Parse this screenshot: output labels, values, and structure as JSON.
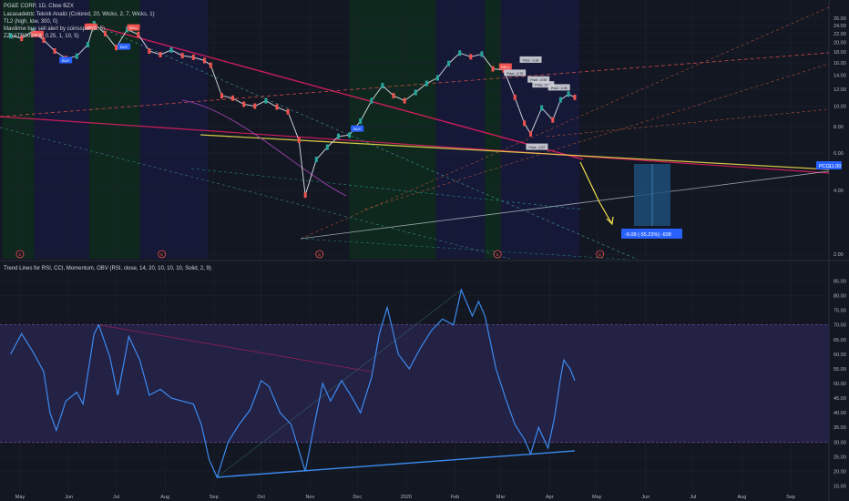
{
  "header": {
    "symbol_line": "PG&E CORP, 1D, Cboe BZX",
    "indicators": [
      "Lacasadebtc Teknik Analiz  (Colored, 20, Wicks, 2, 7, Wicks, 1)",
      "TL2 (high, low, 300, 0)",
      "Mavilimw buy sell alert by coinsspor (3, 5)",
      "ZZ (ATR005 * X, 0.25, 1, 10, 5)"
    ],
    "oscillator_title": "Trend Lines for RSI, CCI, Momentum, OBV (RSI, close, 14, 20, 10, 10, 10, Solid, 2, 9)"
  },
  "colors": {
    "background": "#131722",
    "candle_up": "#26a69a",
    "candle_down": "#ef5350",
    "rsi_line": "#3d8bf0",
    "rsi_band": "#2a2550",
    "yellow_trend": "#f4e04d",
    "pink_trend": "#e91e63",
    "price_label": "#2962ff",
    "projection_box": "#1f4e79"
  },
  "price_panel": {
    "current_price_label": "PCG",
    "current_price_value": "11.00",
    "target_label": "-6.08 (-55.23%) -608",
    "signals": [
      {
        "text": "SELL",
        "date": "2019-05-12",
        "price": 21.8
      },
      {
        "text": "SELL",
        "date": "2019-06-15",
        "price": 23.6
      },
      {
        "text": "SELL",
        "date": "2019-07-12",
        "price": 23.4
      },
      {
        "text": "BUY",
        "date": "2019-05-30",
        "price": 16.4
      },
      {
        "text": "BUY",
        "date": "2019-07-06",
        "price": 19.0
      },
      {
        "text": "BUY",
        "date": "2019-12-01",
        "price": 7.8
      },
      {
        "text": "SELL",
        "date": "2020-03-04",
        "price": 15.3
      }
    ],
    "annotations": [
      {
        "text": "Price: -0.30",
        "date": "2020-03-20",
        "price": 16.5
      },
      {
        "text": "Price: -0.75",
        "date": "2020-03-10",
        "price": 14.3
      },
      {
        "text": "Price: -0.55",
        "date": "2020-03-25",
        "price": 13.3
      },
      {
        "text": "Price: -0.80",
        "date": "2020-03-28",
        "price": 12.6
      },
      {
        "text": "Price: -0.95",
        "date": "2020-04-07",
        "price": 12.2
      },
      {
        "text": "Price: -0.67",
        "date": "2020-03-24",
        "price": 6.4
      }
    ],
    "event_markers": [
      {
        "text": "E",
        "date": "2019-05-01"
      },
      {
        "text": "E",
        "date": "2019-07-30"
      },
      {
        "text": "E",
        "date": "2019-11-07"
      },
      {
        "text": "E",
        "date": "2020-02-28"
      },
      {
        "text": "E",
        "date": "2020-05-03"
      }
    ]
  },
  "chart_data": [
    {
      "type": "line",
      "title": "PG&E CORP, 1D, Cboe BZX",
      "x_tick_labels": [
        "May",
        "Jun",
        "Jul",
        "Aug",
        "Sep",
        "Oct",
        "Nov",
        "Dec",
        "2020",
        "Feb",
        "Mar",
        "Apr",
        "May",
        "Jun",
        "Jul",
        "Aug",
        "Sep"
      ],
      "x_tick_dates": [
        "2019-05-01",
        "2019-06-01",
        "2019-07-01",
        "2019-08-01",
        "2019-09-01",
        "2019-10-01",
        "2019-11-01",
        "2019-12-01",
        "2020-01-01",
        "2020-02-01",
        "2020-03-01",
        "2020-04-01",
        "2020-05-01",
        "2020-06-01",
        "2020-07-01",
        "2020-08-01",
        "2020-09-01"
      ],
      "y_tick_labels": [
        "2.00",
        "4.00",
        "6.00",
        "8.00",
        "10.00",
        "12.00",
        "14.00",
        "16.00",
        "18.00",
        "20.00",
        "22.00",
        "24.00",
        "26.00"
      ],
      "ylim": [
        2,
        26
      ],
      "log_scale": true,
      "series": [
        {
          "name": "PCG",
          "points": [
            [
              "2019-04-25",
              21.5
            ],
            [
              "2019-05-02",
              20.9
            ],
            [
              "2019-05-09",
              22.6
            ],
            [
              "2019-05-16",
              20.5
            ],
            [
              "2019-05-23",
              18.2
            ],
            [
              "2019-05-30",
              16.8
            ],
            [
              "2019-06-06",
              17.2
            ],
            [
              "2019-06-13",
              19.5
            ],
            [
              "2019-06-17",
              24.5
            ],
            [
              "2019-06-24",
              22.0
            ],
            [
              "2019-07-01",
              18.9
            ],
            [
              "2019-07-08",
              23.0
            ],
            [
              "2019-07-15",
              21.8
            ],
            [
              "2019-07-22",
              18.2
            ],
            [
              "2019-07-29",
              17.5
            ],
            [
              "2019-08-05",
              18.4
            ],
            [
              "2019-08-12",
              17.3
            ],
            [
              "2019-08-19",
              17.0
            ],
            [
              "2019-08-26",
              16.4
            ],
            [
              "2019-08-30",
              15.6
            ],
            [
              "2019-09-06",
              11.2
            ],
            [
              "2019-09-13",
              10.9
            ],
            [
              "2019-09-20",
              10.2
            ],
            [
              "2019-09-27",
              10.0
            ],
            [
              "2019-10-04",
              10.6
            ],
            [
              "2019-10-11",
              9.9
            ],
            [
              "2019-10-18",
              9.4
            ],
            [
              "2019-10-25",
              6.9
            ],
            [
              "2019-10-29",
              3.8
            ],
            [
              "2019-11-05",
              5.6
            ],
            [
              "2019-11-12",
              6.4
            ],
            [
              "2019-11-19",
              7.2
            ],
            [
              "2019-11-26",
              7.3
            ],
            [
              "2019-12-03",
              8.5
            ],
            [
              "2019-12-10",
              10.6
            ],
            [
              "2019-12-17",
              12.5
            ],
            [
              "2019-12-24",
              11.2
            ],
            [
              "2019-12-31",
              10.6
            ],
            [
              "2020-01-07",
              11.6
            ],
            [
              "2020-01-14",
              12.8
            ],
            [
              "2020-01-21",
              13.6
            ],
            [
              "2020-01-28",
              15.9
            ],
            [
              "2020-02-04",
              17.8
            ],
            [
              "2020-02-11",
              17.1
            ],
            [
              "2020-02-18",
              17.6
            ],
            [
              "2020-02-25",
              15.0
            ],
            [
              "2020-03-03",
              14.8
            ],
            [
              "2020-03-10",
              11.0
            ],
            [
              "2020-03-16",
              8.3
            ],
            [
              "2020-03-20",
              7.4
            ],
            [
              "2020-03-27",
              9.8
            ],
            [
              "2020-04-03",
              8.6
            ],
            [
              "2020-04-08",
              10.7
            ],
            [
              "2020-04-13",
              11.4
            ],
            [
              "2020-04-17",
              11.0
            ]
          ]
        }
      ]
    },
    {
      "type": "line",
      "title": "Trend Lines for RSI, CCI, Momentum, OBV (RSI, close, 14, 20, 10, 10, 10, Solid, 2, 9)",
      "y_tick_labels": [
        "15.00",
        "20.00",
        "25.00",
        "30.00",
        "35.00",
        "40.00",
        "45.00",
        "50.00",
        "55.00",
        "60.00",
        "65.00",
        "70.00",
        "75.00",
        "80.00",
        "85.00"
      ],
      "ylim": [
        13,
        87
      ],
      "reference_lines": [
        30,
        70
      ],
      "series": [
        {
          "name": "RSI",
          "points": [
            [
              "2019-04-25",
              60
            ],
            [
              "2019-05-02",
              67
            ],
            [
              "2019-05-09",
              61
            ],
            [
              "2019-05-16",
              54
            ],
            [
              "2019-05-20",
              40
            ],
            [
              "2019-05-24",
              34
            ],
            [
              "2019-05-30",
              44
            ],
            [
              "2019-06-06",
              47
            ],
            [
              "2019-06-10",
              43
            ],
            [
              "2019-06-17",
              67
            ],
            [
              "2019-06-20",
              70
            ],
            [
              "2019-06-27",
              59
            ],
            [
              "2019-07-02",
              46
            ],
            [
              "2019-07-09",
              66
            ],
            [
              "2019-07-16",
              58
            ],
            [
              "2019-07-22",
              46
            ],
            [
              "2019-07-29",
              48
            ],
            [
              "2019-08-05",
              45
            ],
            [
              "2019-08-12",
              44
            ],
            [
              "2019-08-19",
              43
            ],
            [
              "2019-08-24",
              36
            ],
            [
              "2019-08-29",
              24
            ],
            [
              "2019-09-03",
              18
            ],
            [
              "2019-09-10",
              30
            ],
            [
              "2019-09-17",
              36
            ],
            [
              "2019-09-24",
              41
            ],
            [
              "2019-10-01",
              51
            ],
            [
              "2019-10-06",
              49
            ],
            [
              "2019-10-13",
              40
            ],
            [
              "2019-10-20",
              36
            ],
            [
              "2019-10-29",
              20
            ],
            [
              "2019-11-03",
              34
            ],
            [
              "2019-11-09",
              50
            ],
            [
              "2019-11-14",
              44
            ],
            [
              "2019-11-21",
              51
            ],
            [
              "2019-11-28",
              45
            ],
            [
              "2019-12-03",
              40
            ],
            [
              "2019-12-10",
              52
            ],
            [
              "2019-12-15",
              67
            ],
            [
              "2019-12-20",
              76
            ],
            [
              "2019-12-27",
              60
            ],
            [
              "2020-01-03",
              55
            ],
            [
              "2020-01-10",
              62
            ],
            [
              "2020-01-17",
              68
            ],
            [
              "2020-01-24",
              72
            ],
            [
              "2020-01-31",
              70
            ],
            [
              "2020-02-05",
              82
            ],
            [
              "2020-02-12",
              73
            ],
            [
              "2020-02-16",
              78
            ],
            [
              "2020-02-20",
              73
            ],
            [
              "2020-02-27",
              55
            ],
            [
              "2020-03-04",
              45
            ],
            [
              "2020-03-10",
              36
            ],
            [
              "2020-03-16",
              31
            ],
            [
              "2020-03-20",
              26
            ],
            [
              "2020-03-25",
              35
            ],
            [
              "2020-03-31",
              28
            ],
            [
              "2020-04-04",
              38
            ],
            [
              "2020-04-08",
              52
            ],
            [
              "2020-04-10",
              58
            ],
            [
              "2020-04-14",
              55
            ],
            [
              "2020-04-17",
              51
            ]
          ]
        }
      ]
    }
  ]
}
